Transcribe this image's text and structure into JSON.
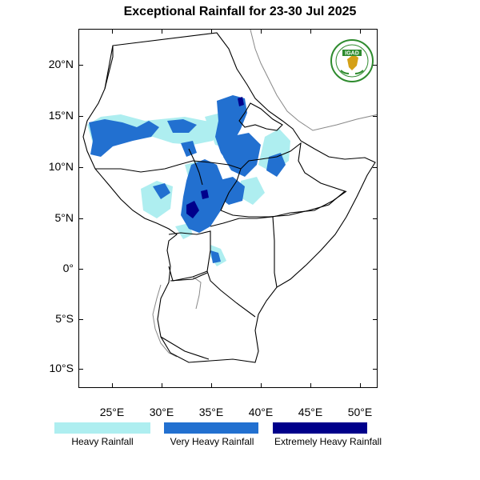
{
  "title": "Exceptional Rainfall for 23-30 Jul 2025",
  "logo": {
    "text": "IGAD",
    "icon": "igad-logo-icon"
  },
  "axes": {
    "latitude_labels": [
      "20°N",
      "15°N",
      "10°N",
      "5°N",
      "0°",
      "5°S",
      "10°S"
    ],
    "longitude_labels": [
      "25°E",
      "30°E",
      "35°E",
      "40°E",
      "45°E",
      "50°E"
    ]
  },
  "legend": [
    {
      "label": "Heavy Rainfall",
      "color": "#aeeef0"
    },
    {
      "label": "Very Heavy Rainfall",
      "color": "#2270d0"
    },
    {
      "label": "Extremely Heavy Rainfall",
      "color": "#00008b"
    }
  ],
  "colors": {
    "heavy": "#aeeef0",
    "very_heavy": "#2270d0",
    "extremely_heavy": "#00008b",
    "border": "#000000",
    "coast_grey": "#888888"
  }
}
